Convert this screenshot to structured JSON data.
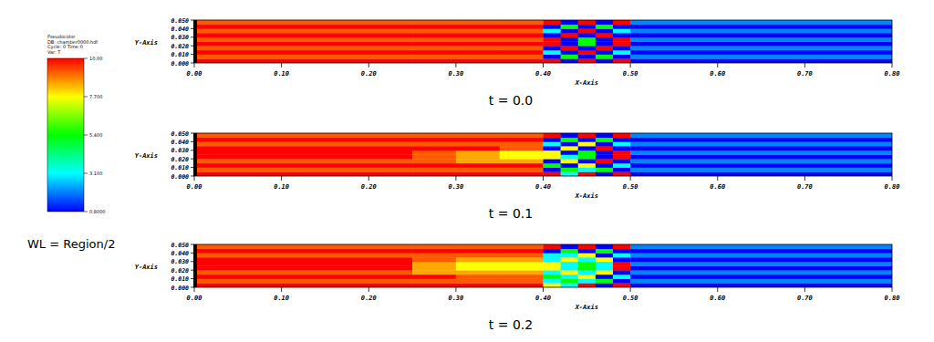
{
  "chart_data": [
    {
      "type": "heatmap",
      "title": "t = 0.0",
      "x_label": "X-Axis",
      "y_label": "Y-Axis",
      "xlim": [
        0,
        0.8
      ],
      "ylim": [
        0,
        0.05
      ],
      "xticks": [
        {
          "value": 0,
          "label": "0.00"
        },
        {
          "value": 0.1,
          "label": "0.10"
        },
        {
          "value": 0.2,
          "label": "0.20"
        },
        {
          "value": 0.3,
          "label": "0.30"
        },
        {
          "value": 0.4,
          "label": "0.40"
        },
        {
          "value": 0.5,
          "label": "0.50"
        },
        {
          "value": 0.6,
          "label": "0.60"
        },
        {
          "value": 0.7,
          "label": "0.70"
        },
        {
          "value": 0.8,
          "label": "0.80"
        }
      ],
      "yticks": [
        {
          "value": 0,
          "label": "0.000"
        },
        {
          "value": 0.01,
          "label": "0.010"
        },
        {
          "value": 0.02,
          "label": "0.020"
        },
        {
          "value": 0.03,
          "label": "0.030"
        },
        {
          "value": 0.04,
          "label": "0.040"
        },
        {
          "value": 0.05,
          "label": "0.050"
        }
      ],
      "x_edges": [
        0,
        0.25,
        0.3,
        0.35,
        0.4,
        0.42,
        0.44,
        0.46,
        0.48,
        0.5,
        0.8
      ],
      "y_edges": [
        0,
        0.005,
        0.01,
        0.015,
        0.02,
        0.025,
        0.03,
        0.035,
        0.04,
        0.045,
        0.05
      ],
      "cells": [
        [
          10,
          10,
          10,
          10,
          10,
          0.8,
          10,
          0.8,
          10,
          0.8
        ],
        [
          9.2,
          9.2,
          9.2,
          9.2,
          0.8,
          5.4,
          0.8,
          5.4,
          0.8,
          2
        ],
        [
          10,
          10,
          10,
          10,
          3.1,
          0.8,
          10,
          0.8,
          3.1,
          0.8
        ],
        [
          9.2,
          9.2,
          9.2,
          9.2,
          0.8,
          10,
          0.8,
          10,
          0.8,
          2
        ],
        [
          10,
          10,
          10,
          10,
          10,
          0.8,
          5.4,
          0.8,
          10,
          0.8
        ],
        [
          9.2,
          9.2,
          9.2,
          9.2,
          10,
          0.8,
          5.4,
          0.8,
          10,
          2
        ],
        [
          10,
          10,
          10,
          10,
          0.8,
          10,
          0.8,
          10,
          0.8,
          0.8
        ],
        [
          9.2,
          9.2,
          9.2,
          9.2,
          3.1,
          0.8,
          10,
          0.8,
          3.1,
          2
        ],
        [
          10,
          10,
          10,
          10,
          0.8,
          5.4,
          0.8,
          5.4,
          0.8,
          0.8
        ],
        [
          9.2,
          9.2,
          9.2,
          9.2,
          10,
          0.8,
          10,
          0.8,
          10,
          2
        ]
      ]
    },
    {
      "type": "heatmap",
      "title": "t = 0.1",
      "x_label": "X-Axis",
      "y_label": "Y-Axis",
      "xlim": [
        0,
        0.8
      ],
      "ylim": [
        0,
        0.05
      ],
      "xticks": [
        {
          "value": 0,
          "label": "0.00"
        },
        {
          "value": 0.1,
          "label": "0.10"
        },
        {
          "value": 0.2,
          "label": "0.20"
        },
        {
          "value": 0.3,
          "label": "0.30"
        },
        {
          "value": 0.4,
          "label": "0.40"
        },
        {
          "value": 0.5,
          "label": "0.50"
        },
        {
          "value": 0.6,
          "label": "0.60"
        },
        {
          "value": 0.7,
          "label": "0.70"
        },
        {
          "value": 0.8,
          "label": "0.80"
        }
      ],
      "yticks": [
        {
          "value": 0,
          "label": "0.000"
        },
        {
          "value": 0.01,
          "label": "0.010"
        },
        {
          "value": 0.02,
          "label": "0.020"
        },
        {
          "value": 0.03,
          "label": "0.030"
        },
        {
          "value": 0.04,
          "label": "0.040"
        },
        {
          "value": 0.05,
          "label": "0.050"
        }
      ],
      "x_edges": [
        0,
        0.25,
        0.3,
        0.35,
        0.4,
        0.42,
        0.44,
        0.46,
        0.48,
        0.5,
        0.8
      ],
      "y_edges": [
        0,
        0.005,
        0.01,
        0.015,
        0.02,
        0.025,
        0.03,
        0.035,
        0.04,
        0.045,
        0.05
      ],
      "cells": [
        [
          10,
          10,
          10,
          10,
          10,
          3.1,
          10,
          0.8,
          10,
          0.8
        ],
        [
          9.2,
          9.2,
          9.2,
          9.2,
          0.8,
          5.4,
          3.1,
          5.4,
          0.8,
          2
        ],
        [
          10,
          10,
          10,
          10,
          5.4,
          0.8,
          7.7,
          0.8,
          3.1,
          0.8
        ],
        [
          9.2,
          9.2,
          8.5,
          8.5,
          0.8,
          7.7,
          0.8,
          10,
          0.8,
          2
        ],
        [
          10,
          9.2,
          8.5,
          7.7,
          7.7,
          3.1,
          5.4,
          0.8,
          10,
          0.8
        ],
        [
          10,
          9.2,
          8.5,
          7.7,
          7.7,
          0.8,
          5.4,
          0.8,
          10,
          2
        ],
        [
          10,
          10,
          10,
          9.2,
          0.8,
          7.7,
          0.8,
          10,
          0.8,
          0.8
        ],
        [
          9.2,
          9.2,
          9.2,
          9.2,
          3.1,
          0.8,
          7.7,
          0.8,
          3.1,
          2
        ],
        [
          10,
          10,
          10,
          10,
          0.8,
          5.4,
          0.8,
          5.4,
          0.8,
          0.8
        ],
        [
          9.2,
          9.2,
          9.2,
          9.2,
          10,
          0.8,
          10,
          0.8,
          10,
          2
        ]
      ]
    },
    {
      "type": "heatmap",
      "title": "t = 0.2",
      "x_label": "X-Axis",
      "y_label": "Y-Axis",
      "xlim": [
        0,
        0.8
      ],
      "ylim": [
        0,
        0.05
      ],
      "xticks": [
        {
          "value": 0,
          "label": "0.00"
        },
        {
          "value": 0.1,
          "label": "0.10"
        },
        {
          "value": 0.2,
          "label": "0.20"
        },
        {
          "value": 0.3,
          "label": "0.30"
        },
        {
          "value": 0.4,
          "label": "0.40"
        },
        {
          "value": 0.5,
          "label": "0.50"
        },
        {
          "value": 0.6,
          "label": "0.60"
        },
        {
          "value": 0.7,
          "label": "0.70"
        },
        {
          "value": 0.8,
          "label": "0.80"
        }
      ],
      "yticks": [
        {
          "value": 0,
          "label": "0.000"
        },
        {
          "value": 0.01,
          "label": "0.010"
        },
        {
          "value": 0.02,
          "label": "0.020"
        },
        {
          "value": 0.03,
          "label": "0.030"
        },
        {
          "value": 0.04,
          "label": "0.040"
        },
        {
          "value": 0.05,
          "label": "0.050"
        }
      ],
      "x_edges": [
        0,
        0.25,
        0.3,
        0.35,
        0.4,
        0.42,
        0.44,
        0.46,
        0.48,
        0.5,
        0.8
      ],
      "y_edges": [
        0,
        0.005,
        0.01,
        0.015,
        0.02,
        0.025,
        0.03,
        0.035,
        0.04,
        0.045,
        0.05
      ],
      "cells": [
        [
          10,
          10,
          10,
          10,
          7.7,
          3.1,
          10,
          0.8,
          10,
          0.8
        ],
        [
          9.2,
          9.2,
          9.2,
          9.2,
          3.1,
          5.4,
          3.1,
          5.4,
          0.8,
          2
        ],
        [
          10,
          10,
          9.2,
          9.2,
          5.4,
          3.1,
          7.7,
          0.8,
          3.1,
          0.8
        ],
        [
          9.2,
          8.5,
          8.5,
          8.5,
          3.1,
          7.7,
          3.1,
          7.7,
          0.8,
          2
        ],
        [
          10,
          8.5,
          7.7,
          7.7,
          7.7,
          3.1,
          5.4,
          3.1,
          10,
          0.8
        ],
        [
          10,
          8.5,
          7.7,
          7.7,
          7.7,
          3.1,
          5.4,
          3.1,
          10,
          2
        ],
        [
          10,
          9.2,
          8.5,
          8.5,
          3.1,
          7.7,
          3.1,
          7.7,
          0.8,
          0.8
        ],
        [
          9.2,
          9.2,
          9.2,
          9.2,
          3.1,
          3.1,
          7.7,
          0.8,
          3.1,
          2
        ],
        [
          10,
          10,
          10,
          10,
          0.8,
          5.4,
          0.8,
          5.4,
          0.8,
          0.8
        ],
        [
          9.2,
          9.2,
          9.2,
          9.2,
          10,
          0.8,
          10,
          0.8,
          10,
          2
        ]
      ]
    }
  ],
  "legend_box": {
    "lines": [
      "Pseudocolor",
      "DB: chamber0000.hdf",
      "Cycle: 0   Time:0",
      "Var: T"
    ]
  },
  "colorbar": {
    "range": [
      0.8,
      10
    ],
    "ticks": [
      {
        "value": 10,
        "label": "10.00"
      },
      {
        "value": 7.7,
        "label": "7.700"
      },
      {
        "value": 5.4,
        "label": "5.400"
      },
      {
        "value": 3.1,
        "label": "3.100"
      },
      {
        "value": 0.8,
        "label": "0.8000"
      }
    ]
  },
  "annotation": "WL = Region/2"
}
